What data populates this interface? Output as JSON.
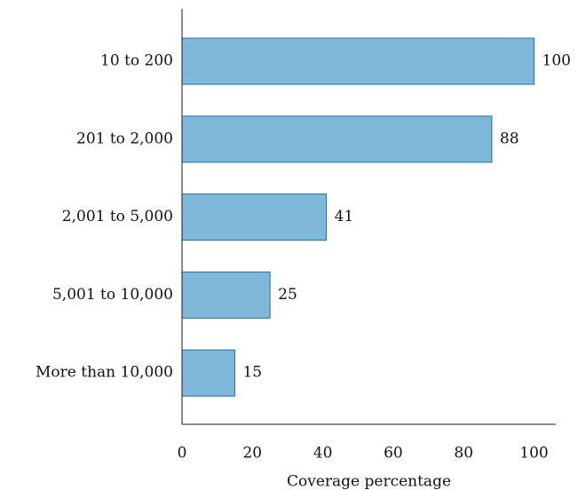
{
  "colors": {
    "bar_fill": "#80b8da",
    "bar_stroke": "#1f6fa8",
    "axis": "#1a1a1a",
    "text": "#111111"
  },
  "chart_data": {
    "type": "bar",
    "orientation": "horizontal",
    "categories": [
      "10 to 200",
      "201 to 2,000",
      "2,001 to 5,000",
      "5,001 to 10,000",
      "More than 10,000"
    ],
    "values": [
      100,
      88,
      41,
      25,
      15
    ],
    "data_labels": [
      "100",
      "88",
      "41",
      "25",
      "15"
    ],
    "title": "",
    "xlabel": "Coverage percentage",
    "ylabel": "",
    "xlim": [
      0,
      110
    ],
    "xticks": [
      0,
      20,
      40,
      60,
      80,
      100
    ],
    "grid": false,
    "legend": "none"
  }
}
